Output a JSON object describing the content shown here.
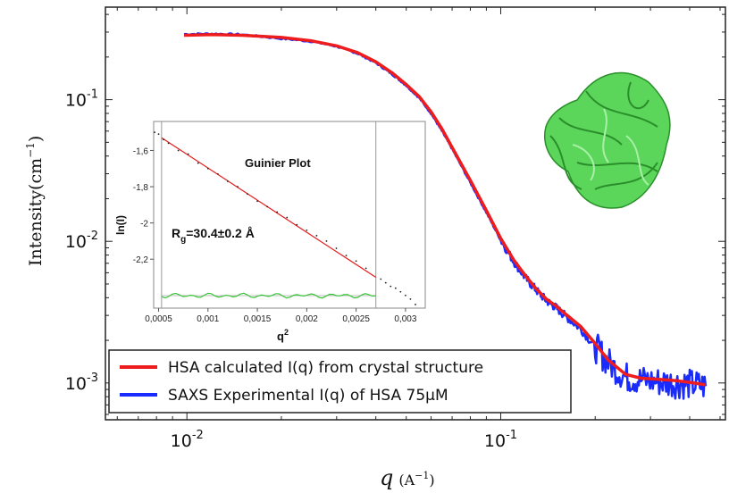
{
  "chart_data": [
    {
      "type": "line",
      "scale": "log-log",
      "xlabel_symbol": "q",
      "xlabel_unit": "(A",
      "xlabel_exp": "−1",
      "xlabel_close": ")",
      "ylabel_main": "Intensity(cm",
      "ylabel_exp": "−1",
      "ylabel_close": ")",
      "xlim": [
        0.0055,
        0.52
      ],
      "ylim": [
        0.00055,
        0.45
      ],
      "x_ticks": [
        {
          "value": 0.01,
          "base": "10",
          "exp": "-2"
        },
        {
          "value": 0.1,
          "base": "10",
          "exp": "-1"
        }
      ],
      "y_ticks": [
        {
          "value": 0.001,
          "base": "10",
          "exp": "-3"
        },
        {
          "value": 0.01,
          "base": "10",
          "exp": "-2"
        },
        {
          "value": 0.1,
          "base": "10",
          "exp": "-1"
        }
      ],
      "series": [
        {
          "name": "HSA calculated I(q) from crystal structure",
          "color": "#ee1c1c",
          "x": [
            0.0098,
            0.012,
            0.015,
            0.02,
            0.025,
            0.03,
            0.035,
            0.04,
            0.045,
            0.05,
            0.055,
            0.06,
            0.065,
            0.07,
            0.08,
            0.09,
            0.1,
            0.11,
            0.12,
            0.13,
            0.14,
            0.15,
            0.16,
            0.18,
            0.2,
            0.22,
            0.25,
            0.28,
            0.32,
            0.36,
            0.4,
            0.45
          ],
          "y": [
            0.285,
            0.288,
            0.285,
            0.275,
            0.26,
            0.24,
            0.215,
            0.185,
            0.155,
            0.128,
            0.105,
            0.082,
            0.062,
            0.046,
            0.027,
            0.0165,
            0.0105,
            0.0074,
            0.0057,
            0.0046,
            0.0039,
            0.0035,
            0.0031,
            0.0025,
            0.0019,
            0.00145,
            0.00115,
            0.00108,
            0.00106,
            0.00104,
            0.00101,
            0.00097
          ]
        },
        {
          "name": "SAXS Experimental I(q) of HSA 75μM",
          "color": "#1a2bff",
          "x": [
            0.0098,
            0.012,
            0.015,
            0.02,
            0.025,
            0.03,
            0.035,
            0.04,
            0.045,
            0.05,
            0.055,
            0.06,
            0.065,
            0.07,
            0.08,
            0.09,
            0.1,
            0.11,
            0.12,
            0.13,
            0.14,
            0.15,
            0.16,
            0.18,
            0.2,
            0.22,
            0.25,
            0.28,
            0.32,
            0.36,
            0.4,
            0.45
          ],
          "y": [
            0.29,
            0.292,
            0.288,
            0.27,
            0.258,
            0.238,
            0.212,
            0.182,
            0.152,
            0.126,
            0.103,
            0.08,
            0.06,
            0.045,
            0.026,
            0.016,
            0.0102,
            0.0072,
            0.0055,
            0.0045,
            0.0038,
            0.0034,
            0.003,
            0.0024,
            0.0018,
            0.0014,
            0.0011,
            0.00105,
            0.00102,
            0.001,
            0.00098,
            0.00095
          ]
        }
      ],
      "legend_position": "bottom-left"
    },
    {
      "type": "scatter",
      "title": "Guinier Plot",
      "xlabel": "q",
      "xlabel_exp": "2",
      "ylabel": "ln(I)",
      "annotation_main": "R",
      "annotation_sub": "g",
      "annotation_rest": "=30.4±0.2 Å",
      "xlim": [
        0.00045,
        0.0032
      ],
      "ylim": [
        -2.47,
        -1.44
      ],
      "x_ticks": [
        {
          "value": 0.0005,
          "label": "0,0005"
        },
        {
          "value": 0.001,
          "label": "0,001"
        },
        {
          "value": 0.0015,
          "label": "0,0015"
        },
        {
          "value": 0.002,
          "label": "0,002"
        },
        {
          "value": 0.0025,
          "label": "0,0025"
        },
        {
          "value": 0.003,
          "label": "0,003"
        }
      ],
      "y_ticks": [
        {
          "value": -1.6,
          "label": "-1,6"
        },
        {
          "value": -1.8,
          "label": "-1,8"
        },
        {
          "value": -2.0,
          "label": "-2"
        },
        {
          "value": -2.2,
          "label": "-2,2"
        }
      ],
      "fit_range": [
        0.00053,
        0.0027
      ],
      "fit_line": {
        "x": [
          0.00053,
          0.0027
        ],
        "y": [
          -1.53,
          -2.3
        ]
      },
      "points": {
        "x": [
          0.00046,
          0.0005,
          0.00055,
          0.0006,
          0.0007,
          0.0008,
          0.0009,
          0.001,
          0.0011,
          0.0012,
          0.0013,
          0.0014,
          0.0015,
          0.0016,
          0.0017,
          0.0018,
          0.0019,
          0.002,
          0.0021,
          0.0022,
          0.0023,
          0.0024,
          0.0025,
          0.0026,
          0.00275,
          0.0028,
          0.00285,
          0.0029,
          0.00295,
          0.003,
          0.00305,
          0.0031
        ],
        "y": [
          -1.5,
          -1.51,
          -1.54,
          -1.56,
          -1.6,
          -1.62,
          -1.67,
          -1.7,
          -1.73,
          -1.77,
          -1.8,
          -1.84,
          -1.88,
          -1.91,
          -1.94,
          -1.97,
          -2.01,
          -2.04,
          -2.07,
          -2.1,
          -2.14,
          -2.18,
          -2.21,
          -2.25,
          -2.31,
          -2.33,
          -2.35,
          -2.36,
          -2.38,
          -2.4,
          -2.42,
          -2.45
        ]
      },
      "residuals_color": "#36c236",
      "fit_color": "#e41b1b"
    }
  ]
}
